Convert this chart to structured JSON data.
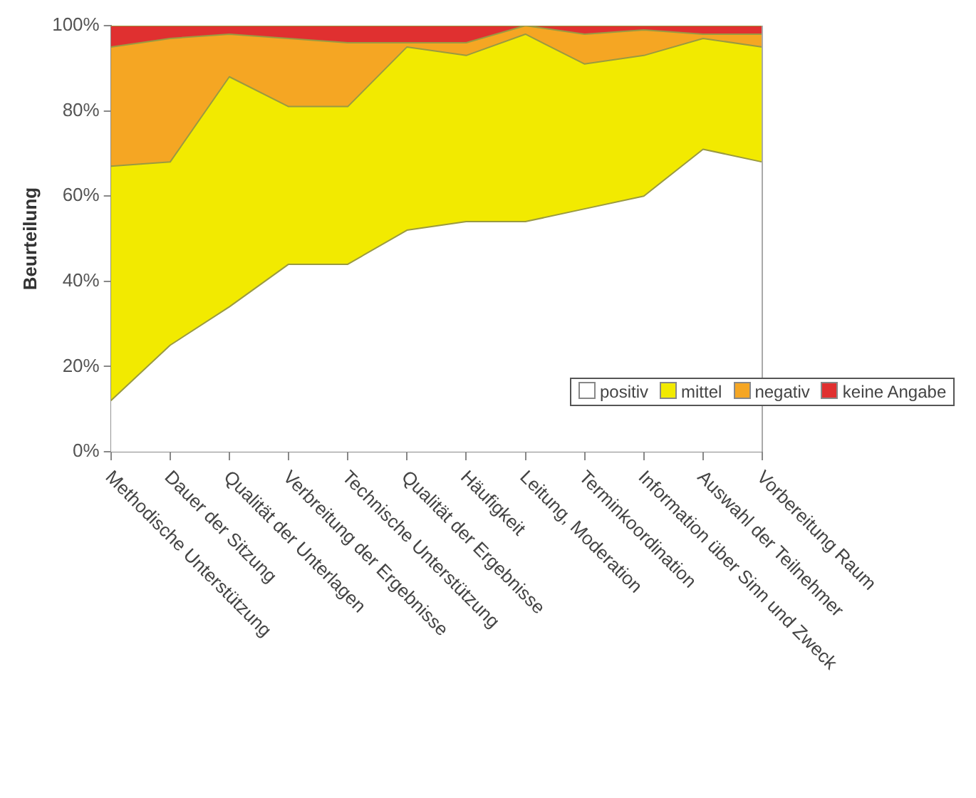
{
  "chart_data": {
    "type": "area",
    "ylabel": "Beurteilung",
    "stacked": true,
    "legend": "bottom right",
    "grid": false,
    "categories": [
      "Methodische Unterstützung",
      "Dauer der Sitzung",
      "Qualität der Unterlagen",
      "Verbreitung der Ergebnisse",
      "Technische Unterstützung",
      "Qualität der Ergebnisse",
      "Häufigkeit",
      "Leitung, Moderation",
      "Terminkoordination",
      "Information über Sinn und Zweck",
      "Auswahl der Teilnehmer",
      "Vorbereitung Raum"
    ],
    "ylim": [
      0,
      100
    ],
    "yticks": [
      {
        "value": 0,
        "label": "0%"
      },
      {
        "value": 20,
        "label": "20%"
      },
      {
        "value": 40,
        "label": "40%"
      },
      {
        "value": 60,
        "label": "60%"
      },
      {
        "value": 80,
        "label": "80%"
      },
      {
        "value": 100,
        "label": "100%"
      }
    ],
    "series": [
      {
        "name": "positiv",
        "color": "#ffffff",
        "values": [
          12,
          25,
          34,
          44,
          44,
          52,
          54,
          54,
          57,
          60,
          71,
          68
        ]
      },
      {
        "name": "mittel",
        "color": "#f2ea00",
        "values": [
          55,
          43,
          54,
          37,
          37,
          43,
          39,
          44,
          34,
          33,
          26,
          27
        ]
      },
      {
        "name": "negativ",
        "color": "#f5a623",
        "values": [
          28,
          29,
          10,
          16,
          15,
          1,
          3,
          2,
          7,
          6,
          1,
          3
        ]
      },
      {
        "name": "keine Angabe",
        "color": "#e03030",
        "values": [
          5,
          3,
          2,
          3,
          4,
          4,
          4,
          0,
          2,
          1,
          2,
          2
        ]
      }
    ]
  }
}
